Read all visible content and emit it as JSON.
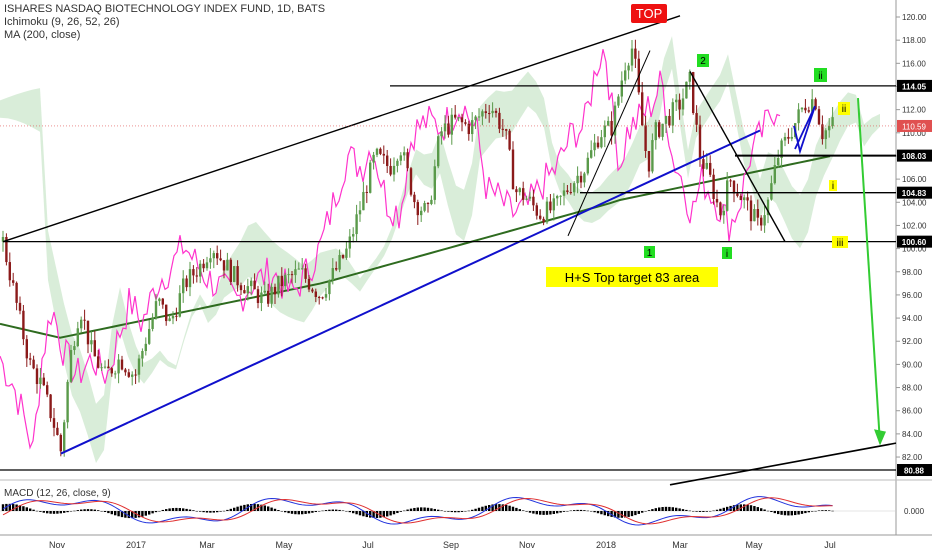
{
  "header": {
    "title": "ISHARES NASDAQ BIOTECHNOLOGY INDEX FUND, 1D, BATS",
    "indicator_1": "Ichimoku (9, 26, 52, 26)",
    "indicator_2": "MA (200, close)"
  },
  "macd_label": "MACD (12, 26, close, 9)",
  "colors": {
    "up": "#5a9a4a",
    "down": "#8b1a1a",
    "magenta": "#ff33cc",
    "ma": "#2e6b1f",
    "trend_blue": "#1010cc",
    "arrow_green": "#33cc33",
    "cloud_green": "#cfe8cf",
    "cloud_red": "#f5d0d0",
    "level_yellow": "#ffff00",
    "top_red": "#ee1111",
    "wave_green": "#22dd22"
  },
  "chart_data": {
    "type": "candlestick",
    "x_ticks": [
      "Nov",
      "2017",
      "Mar",
      "May",
      "Jul",
      "Sep",
      "Nov",
      "2018",
      "Mar",
      "May",
      "Jul"
    ],
    "y_ticks": [
      "120.00",
      "118.00",
      "116.00",
      "114.00",
      "112.00",
      "110.00",
      "108.00",
      "106.00",
      "104.00",
      "102.00",
      "100.00",
      "98.00",
      "96.00",
      "94.00",
      "92.00",
      "90.00",
      "88.00",
      "86.00",
      "84.00",
      "82.00"
    ],
    "ylim": [
      79.5,
      121
    ],
    "levels": [
      {
        "label": "114.05",
        "value": 114.05,
        "from": "2018-01",
        "to": "2018-07"
      },
      {
        "label": "108.03",
        "value": 108.03,
        "from": "2018-04",
        "to": "2018-07"
      },
      {
        "label": "104.83",
        "value": 104.83,
        "from": "2017-12",
        "to": "2018-07"
      },
      {
        "label": "100.60",
        "value": 100.6,
        "from": "2016-10",
        "to": "2018-07"
      },
      {
        "label": "80.88",
        "value": 80.88,
        "from": "2016-10",
        "to": "2018-07"
      }
    ],
    "last_price": "110.59",
    "annotations": {
      "top": "TOP",
      "wave_1": "1",
      "wave_2": "2",
      "wave_i": "i",
      "wave_ii_green": "ii",
      "wave_ii_yellow": "ii",
      "wave_iii": "iii",
      "wave_iv": "i",
      "target_text": "H+S Top target 83 area"
    },
    "macd_ticks": [
      "0.000"
    ]
  }
}
